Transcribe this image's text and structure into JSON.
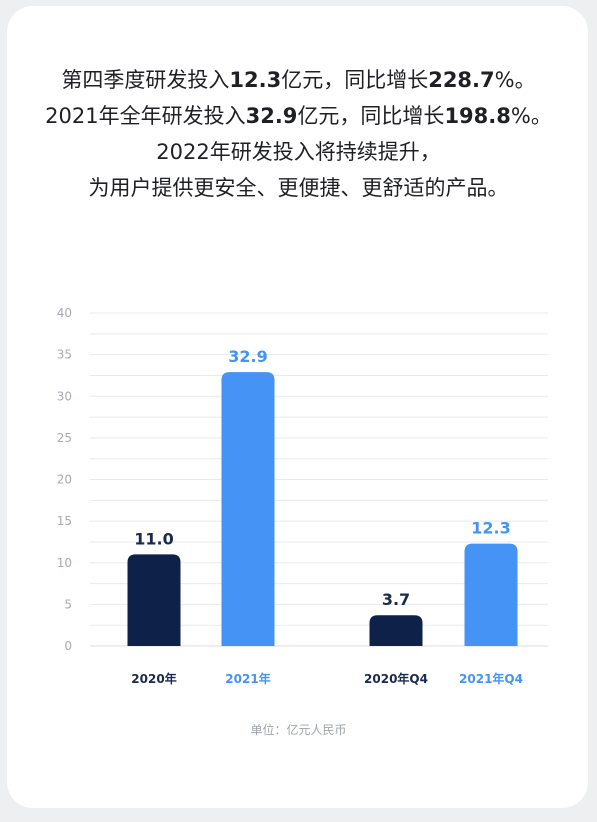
{
  "headline": {
    "line1": {
      "p1": "第四季度研发投入",
      "v1": "12.3",
      "p2": "亿元，同比增长",
      "v2": "228.7",
      "p3": "%。"
    },
    "line2": {
      "p1": "2021年全年研发投入",
      "v1": "32.9",
      "p2": "亿元，同比增长",
      "v2": "198.8",
      "p3": "%。"
    },
    "line3": "2022年研发投入将持续提升，",
    "line4": "为用户提供更安全、更便捷、更舒适的产品。"
  },
  "chart_data": {
    "type": "bar",
    "categories": [
      "2020年",
      "2021年",
      "2020年Q4",
      "2021年Q4"
    ],
    "values": [
      11.0,
      32.9,
      3.7,
      12.3
    ],
    "value_labels": [
      "11.0",
      "32.9",
      "3.7",
      "12.3"
    ],
    "ylim": [
      0,
      40
    ],
    "yticks": [
      0,
      5,
      10,
      15,
      20,
      25,
      30,
      35,
      40
    ],
    "grid": true,
    "bar_colors": [
      "#0e2149",
      "#4593f5",
      "#0e2149",
      "#4593f5"
    ],
    "label_colors": [
      "#1a2a4f",
      "#4593f5",
      "#1a2a4f",
      "#4593f5"
    ],
    "unit_note": "单位：亿元人民币"
  },
  "colors": {
    "dark_bar": "#0e2149",
    "light_bar": "#4593f5",
    "grid": "#e8eaed",
    "tick": "#a7abb2"
  }
}
